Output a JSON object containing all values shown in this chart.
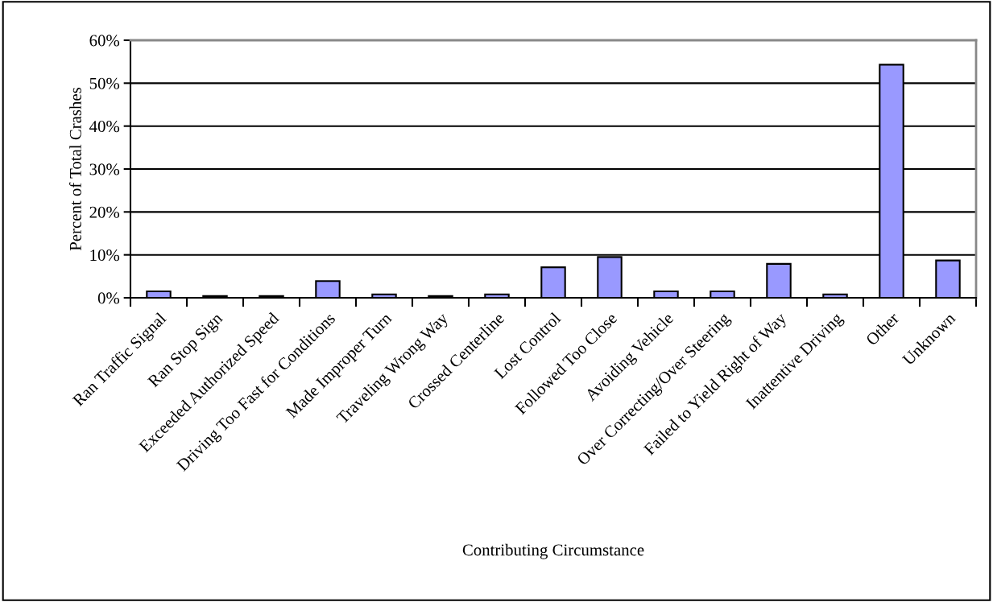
{
  "chart_data": {
    "type": "bar",
    "xlabel": "Contributing Circumstance",
    "ylabel": "Percent of Total Crashes",
    "categories": [
      "Ran Traffic Signal",
      "Ran Stop Sign",
      "Exceeded Authorized Speed",
      "Driving Too Fast for Conditions",
      "Made Improper Turn",
      "Traveling Wrong Way",
      "Crossed Centerline",
      "Lost Control",
      "Followed Too Close",
      "Avoiding Vehicle",
      "Over Correcting/Over Steering",
      "Failed to Yield Right of Way",
      "Inattentive Driving",
      "Other",
      "Unknown"
    ],
    "values": [
      1.5,
      0.4,
      0.4,
      3.9,
      0.8,
      0.4,
      0.8,
      7.1,
      9.5,
      1.5,
      1.5,
      7.9,
      0.8,
      54.3,
      8.7
    ],
    "color": "#9999ff",
    "ylim": [
      0,
      60
    ],
    "yticks": [
      {
        "value": 0,
        "label": "0%"
      },
      {
        "value": 10,
        "label": "10%"
      },
      {
        "value": 20,
        "label": "20%"
      },
      {
        "value": 30,
        "label": "30%"
      },
      {
        "value": 40,
        "label": "40%"
      },
      {
        "value": 50,
        "label": "50%"
      },
      {
        "value": 60,
        "label": "60%"
      }
    ],
    "grid": "y",
    "legend": false
  }
}
